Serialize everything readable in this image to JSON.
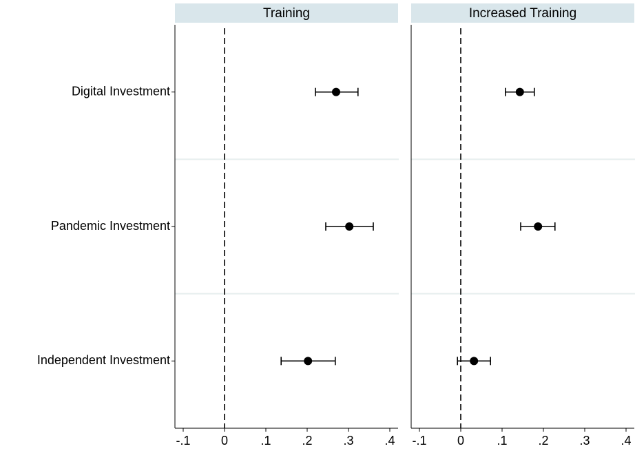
{
  "chart_data": {
    "type": "errorbar",
    "categories": [
      "Digital Investment",
      "Pandemic Investment",
      "Independent Investment"
    ],
    "xlim": [
      -0.12,
      0.42
    ],
    "xticks": [
      {
        "value": -0.1,
        "label": "-.1"
      },
      0,
      {
        "value": 0.1,
        "label": ".1"
      },
      {
        "value": 0.2,
        "label": ".2"
      },
      {
        "value": 0.3,
        "label": ".3"
      },
      {
        "value": 0.4,
        "label": ".4"
      }
    ],
    "refline": 0,
    "color": "#000000",
    "strip_color": "#d9e6eb",
    "grid_color": "#e6eeee",
    "grid": true,
    "panels": [
      {
        "title": "Training",
        "values": [
          0.27,
          0.302,
          0.202
        ],
        "ci_low": [
          0.22,
          0.245,
          0.137
        ],
        "ci_high": [
          0.323,
          0.36,
          0.268
        ]
      },
      {
        "title": "Increased Training",
        "values": [
          0.143,
          0.187,
          0.032
        ],
        "ci_low": [
          0.108,
          0.145,
          -0.008
        ],
        "ci_high": [
          0.178,
          0.228,
          0.072
        ]
      }
    ]
  }
}
